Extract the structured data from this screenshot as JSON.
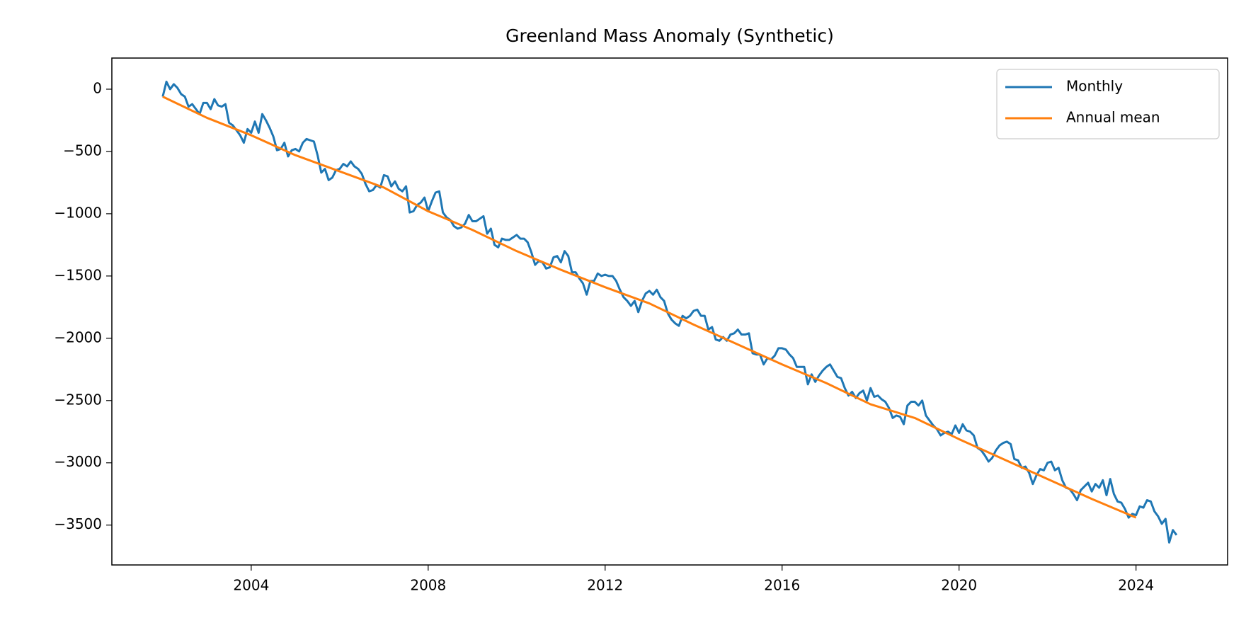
{
  "chart_data": {
    "type": "line",
    "title": "Greenland Mass Anomaly (Synthetic)",
    "xlim": [
      2000.85,
      2026.07
    ],
    "xticks": [
      2004,
      2008,
      2012,
      2016,
      2020,
      2024
    ],
    "ylim": [
      -3820,
      250
    ],
    "yticks": [
      {
        "value": 0,
        "label": "0"
      },
      {
        "value": -500,
        "label": "−500"
      },
      {
        "value": -1000,
        "label": "−1000"
      },
      {
        "value": -1500,
        "label": "−1500"
      },
      {
        "value": -2000,
        "label": "−2000"
      },
      {
        "value": -2500,
        "label": "−2500"
      },
      {
        "value": -3000,
        "label": "−3000"
      },
      {
        "value": -3500,
        "label": "−3500"
      }
    ],
    "grid": false,
    "legend": "upper right",
    "series": [
      {
        "name": "Monthly",
        "color": "#1f77b4",
        "x": [
          2002,
          2002.083,
          2002.167,
          2002.25,
          2002.333,
          2002.417,
          2002.5,
          2002.583,
          2002.667,
          2002.75,
          2002.833,
          2002.917,
          2003,
          2003.083,
          2003.167,
          2003.25,
          2003.333,
          2003.417,
          2003.5,
          2003.583,
          2003.667,
          2003.75,
          2003.833,
          2003.917,
          2004,
          2004.083,
          2004.167,
          2004.25,
          2004.333,
          2004.417,
          2004.5,
          2004.583,
          2004.667,
          2004.75,
          2004.833,
          2004.917,
          2005,
          2005.083,
          2005.167,
          2005.25,
          2005.333,
          2005.417,
          2005.5,
          2005.583,
          2005.667,
          2005.75,
          2005.833,
          2005.917,
          2006,
          2006.083,
          2006.167,
          2006.25,
          2006.333,
          2006.417,
          2006.5,
          2006.583,
          2006.667,
          2006.75,
          2006.833,
          2006.917,
          2007,
          2007.083,
          2007.167,
          2007.25,
          2007.333,
          2007.417,
          2007.5,
          2007.583,
          2007.667,
          2007.75,
          2007.833,
          2007.917,
          2008,
          2008.083,
          2008.167,
          2008.25,
          2008.333,
          2008.417,
          2008.5,
          2008.583,
          2008.667,
          2008.75,
          2008.833,
          2008.917,
          2009,
          2009.083,
          2009.167,
          2009.25,
          2009.333,
          2009.417,
          2009.5,
          2009.583,
          2009.667,
          2009.75,
          2009.833,
          2009.917,
          2010,
          2010.083,
          2010.167,
          2010.25,
          2010.333,
          2010.417,
          2010.5,
          2010.583,
          2010.667,
          2010.75,
          2010.833,
          2010.917,
          2011,
          2011.083,
          2011.167,
          2011.25,
          2011.333,
          2011.417,
          2011.5,
          2011.583,
          2011.667,
          2011.75,
          2011.833,
          2011.917,
          2012,
          2012.083,
          2012.167,
          2012.25,
          2012.333,
          2012.417,
          2012.5,
          2012.583,
          2012.667,
          2012.75,
          2012.833,
          2012.917,
          2013,
          2013.083,
          2013.167,
          2013.25,
          2013.333,
          2013.417,
          2013.5,
          2013.583,
          2013.667,
          2013.75,
          2013.833,
          2013.917,
          2014,
          2014.083,
          2014.167,
          2014.25,
          2014.333,
          2014.417,
          2014.5,
          2014.583,
          2014.667,
          2014.75,
          2014.833,
          2014.917,
          2015,
          2015.083,
          2015.167,
          2015.25,
          2015.333,
          2015.417,
          2015.5,
          2015.583,
          2015.667,
          2015.75,
          2015.833,
          2015.917,
          2016,
          2016.083,
          2016.167,
          2016.25,
          2016.333,
          2016.417,
          2016.5,
          2016.583,
          2016.667,
          2016.75,
          2016.833,
          2016.917,
          2017,
          2017.083,
          2017.167,
          2017.25,
          2017.333,
          2017.417,
          2017.5,
          2017.583,
          2017.667,
          2017.75,
          2017.833,
          2017.917,
          2018,
          2018.083,
          2018.167,
          2018.25,
          2018.333,
          2018.417,
          2018.5,
          2018.583,
          2018.667,
          2018.75,
          2018.833,
          2018.917,
          2019,
          2019.083,
          2019.167,
          2019.25,
          2019.333,
          2019.417,
          2019.5,
          2019.583,
          2019.667,
          2019.75,
          2019.833,
          2019.917,
          2020,
          2020.083,
          2020.167,
          2020.25,
          2020.333,
          2020.417,
          2020.5,
          2020.583,
          2020.667,
          2020.75,
          2020.833,
          2020.917,
          2021,
          2021.083,
          2021.167,
          2021.25,
          2021.333,
          2021.417,
          2021.5,
          2021.583,
          2021.667,
          2021.75,
          2021.833,
          2021.917,
          2022,
          2022.083,
          2022.167,
          2022.25,
          2022.333,
          2022.417,
          2022.5,
          2022.583,
          2022.667,
          2022.75,
          2022.833,
          2022.917,
          2023,
          2023.083,
          2023.167,
          2023.25,
          2023.333,
          2023.417,
          2023.5,
          2023.583,
          2023.667,
          2023.75,
          2023.833,
          2023.917,
          2024,
          2024.083,
          2024.167,
          2024.25,
          2024.333,
          2024.417,
          2024.5,
          2024.583,
          2024.667,
          2024.75,
          2024.833,
          2024.917
        ],
        "values": [
          -60,
          60,
          0,
          40,
          10,
          -40,
          -60,
          -140,
          -120,
          -160,
          -200,
          -110,
          -110,
          -160,
          -80,
          -130,
          -140,
          -120,
          -270,
          -290,
          -330,
          -370,
          -430,
          -320,
          -350,
          -260,
          -350,
          -200,
          -250,
          -310,
          -380,
          -490,
          -480,
          -430,
          -540,
          -490,
          -480,
          -500,
          -430,
          -400,
          -410,
          -420,
          -530,
          -670,
          -640,
          -730,
          -710,
          -650,
          -640,
          -600,
          -620,
          -580,
          -620,
          -640,
          -680,
          -760,
          -820,
          -810,
          -770,
          -790,
          -690,
          -700,
          -780,
          -740,
          -800,
          -820,
          -780,
          -990,
          -980,
          -930,
          -910,
          -870,
          -980,
          -900,
          -830,
          -820,
          -990,
          -1030,
          -1050,
          -1100,
          -1120,
          -1110,
          -1080,
          -1010,
          -1060,
          -1060,
          -1040,
          -1020,
          -1160,
          -1120,
          -1250,
          -1270,
          -1200,
          -1210,
          -1210,
          -1190,
          -1170,
          -1200,
          -1200,
          -1230,
          -1310,
          -1410,
          -1380,
          -1390,
          -1440,
          -1430,
          -1350,
          -1340,
          -1390,
          -1300,
          -1340,
          -1470,
          -1470,
          -1520,
          -1560,
          -1650,
          -1540,
          -1540,
          -1480,
          -1500,
          -1490,
          -1500,
          -1500,
          -1540,
          -1610,
          -1670,
          -1700,
          -1740,
          -1700,
          -1790,
          -1700,
          -1640,
          -1620,
          -1650,
          -1610,
          -1670,
          -1700,
          -1800,
          -1850,
          -1880,
          -1900,
          -1820,
          -1840,
          -1820,
          -1780,
          -1770,
          -1820,
          -1820,
          -1930,
          -1910,
          -2010,
          -2020,
          -1990,
          -2020,
          -1970,
          -1960,
          -1930,
          -1970,
          -1970,
          -1960,
          -2120,
          -2130,
          -2130,
          -2210,
          -2160,
          -2170,
          -2140,
          -2080,
          -2080,
          -2090,
          -2130,
          -2160,
          -2230,
          -2230,
          -2230,
          -2370,
          -2290,
          -2350,
          -2300,
          -2260,
          -2230,
          -2210,
          -2260,
          -2310,
          -2320,
          -2400,
          -2460,
          -2430,
          -2480,
          -2440,
          -2420,
          -2500,
          -2400,
          -2470,
          -2460,
          -2490,
          -2510,
          -2560,
          -2640,
          -2620,
          -2630,
          -2690,
          -2540,
          -2510,
          -2510,
          -2540,
          -2500,
          -2620,
          -2660,
          -2700,
          -2730,
          -2780,
          -2760,
          -2750,
          -2770,
          -2700,
          -2760,
          -2690,
          -2740,
          -2750,
          -2780,
          -2880,
          -2900,
          -2940,
          -2990,
          -2960,
          -2900,
          -2860,
          -2840,
          -2830,
          -2850,
          -2970,
          -2980,
          -3040,
          -3030,
          -3080,
          -3170,
          -3100,
          -3050,
          -3060,
          -3000,
          -2990,
          -3060,
          -3040,
          -3140,
          -3200,
          -3210,
          -3250,
          -3300,
          -3220,
          -3190,
          -3160,
          -3230,
          -3170,
          -3200,
          -3140,
          -3260,
          -3130,
          -3250,
          -3310,
          -3320,
          -3370,
          -3440,
          -3410,
          -3420,
          -3350,
          -3360,
          -3300,
          -3310,
          -3390,
          -3430,
          -3490,
          -3450,
          -3640,
          -3540,
          -3580
        ]
      },
      {
        "name": "Annual mean",
        "color": "#ff7f0e",
        "x": [
          2002,
          2003,
          2004,
          2005,
          2006,
          2007,
          2008,
          2009,
          2010,
          2011,
          2012,
          2013,
          2014,
          2015,
          2016,
          2017,
          2018,
          2019,
          2020,
          2021,
          2022,
          2023,
          2024
        ],
        "values": [
          -60,
          -230,
          -370,
          -530,
          -660,
          -790,
          -980,
          -1130,
          -1300,
          -1450,
          -1590,
          -1720,
          -1890,
          -2050,
          -2210,
          -2360,
          -2530,
          -2640,
          -2810,
          -2970,
          -3130,
          -3290,
          -3440
        ]
      }
    ]
  }
}
